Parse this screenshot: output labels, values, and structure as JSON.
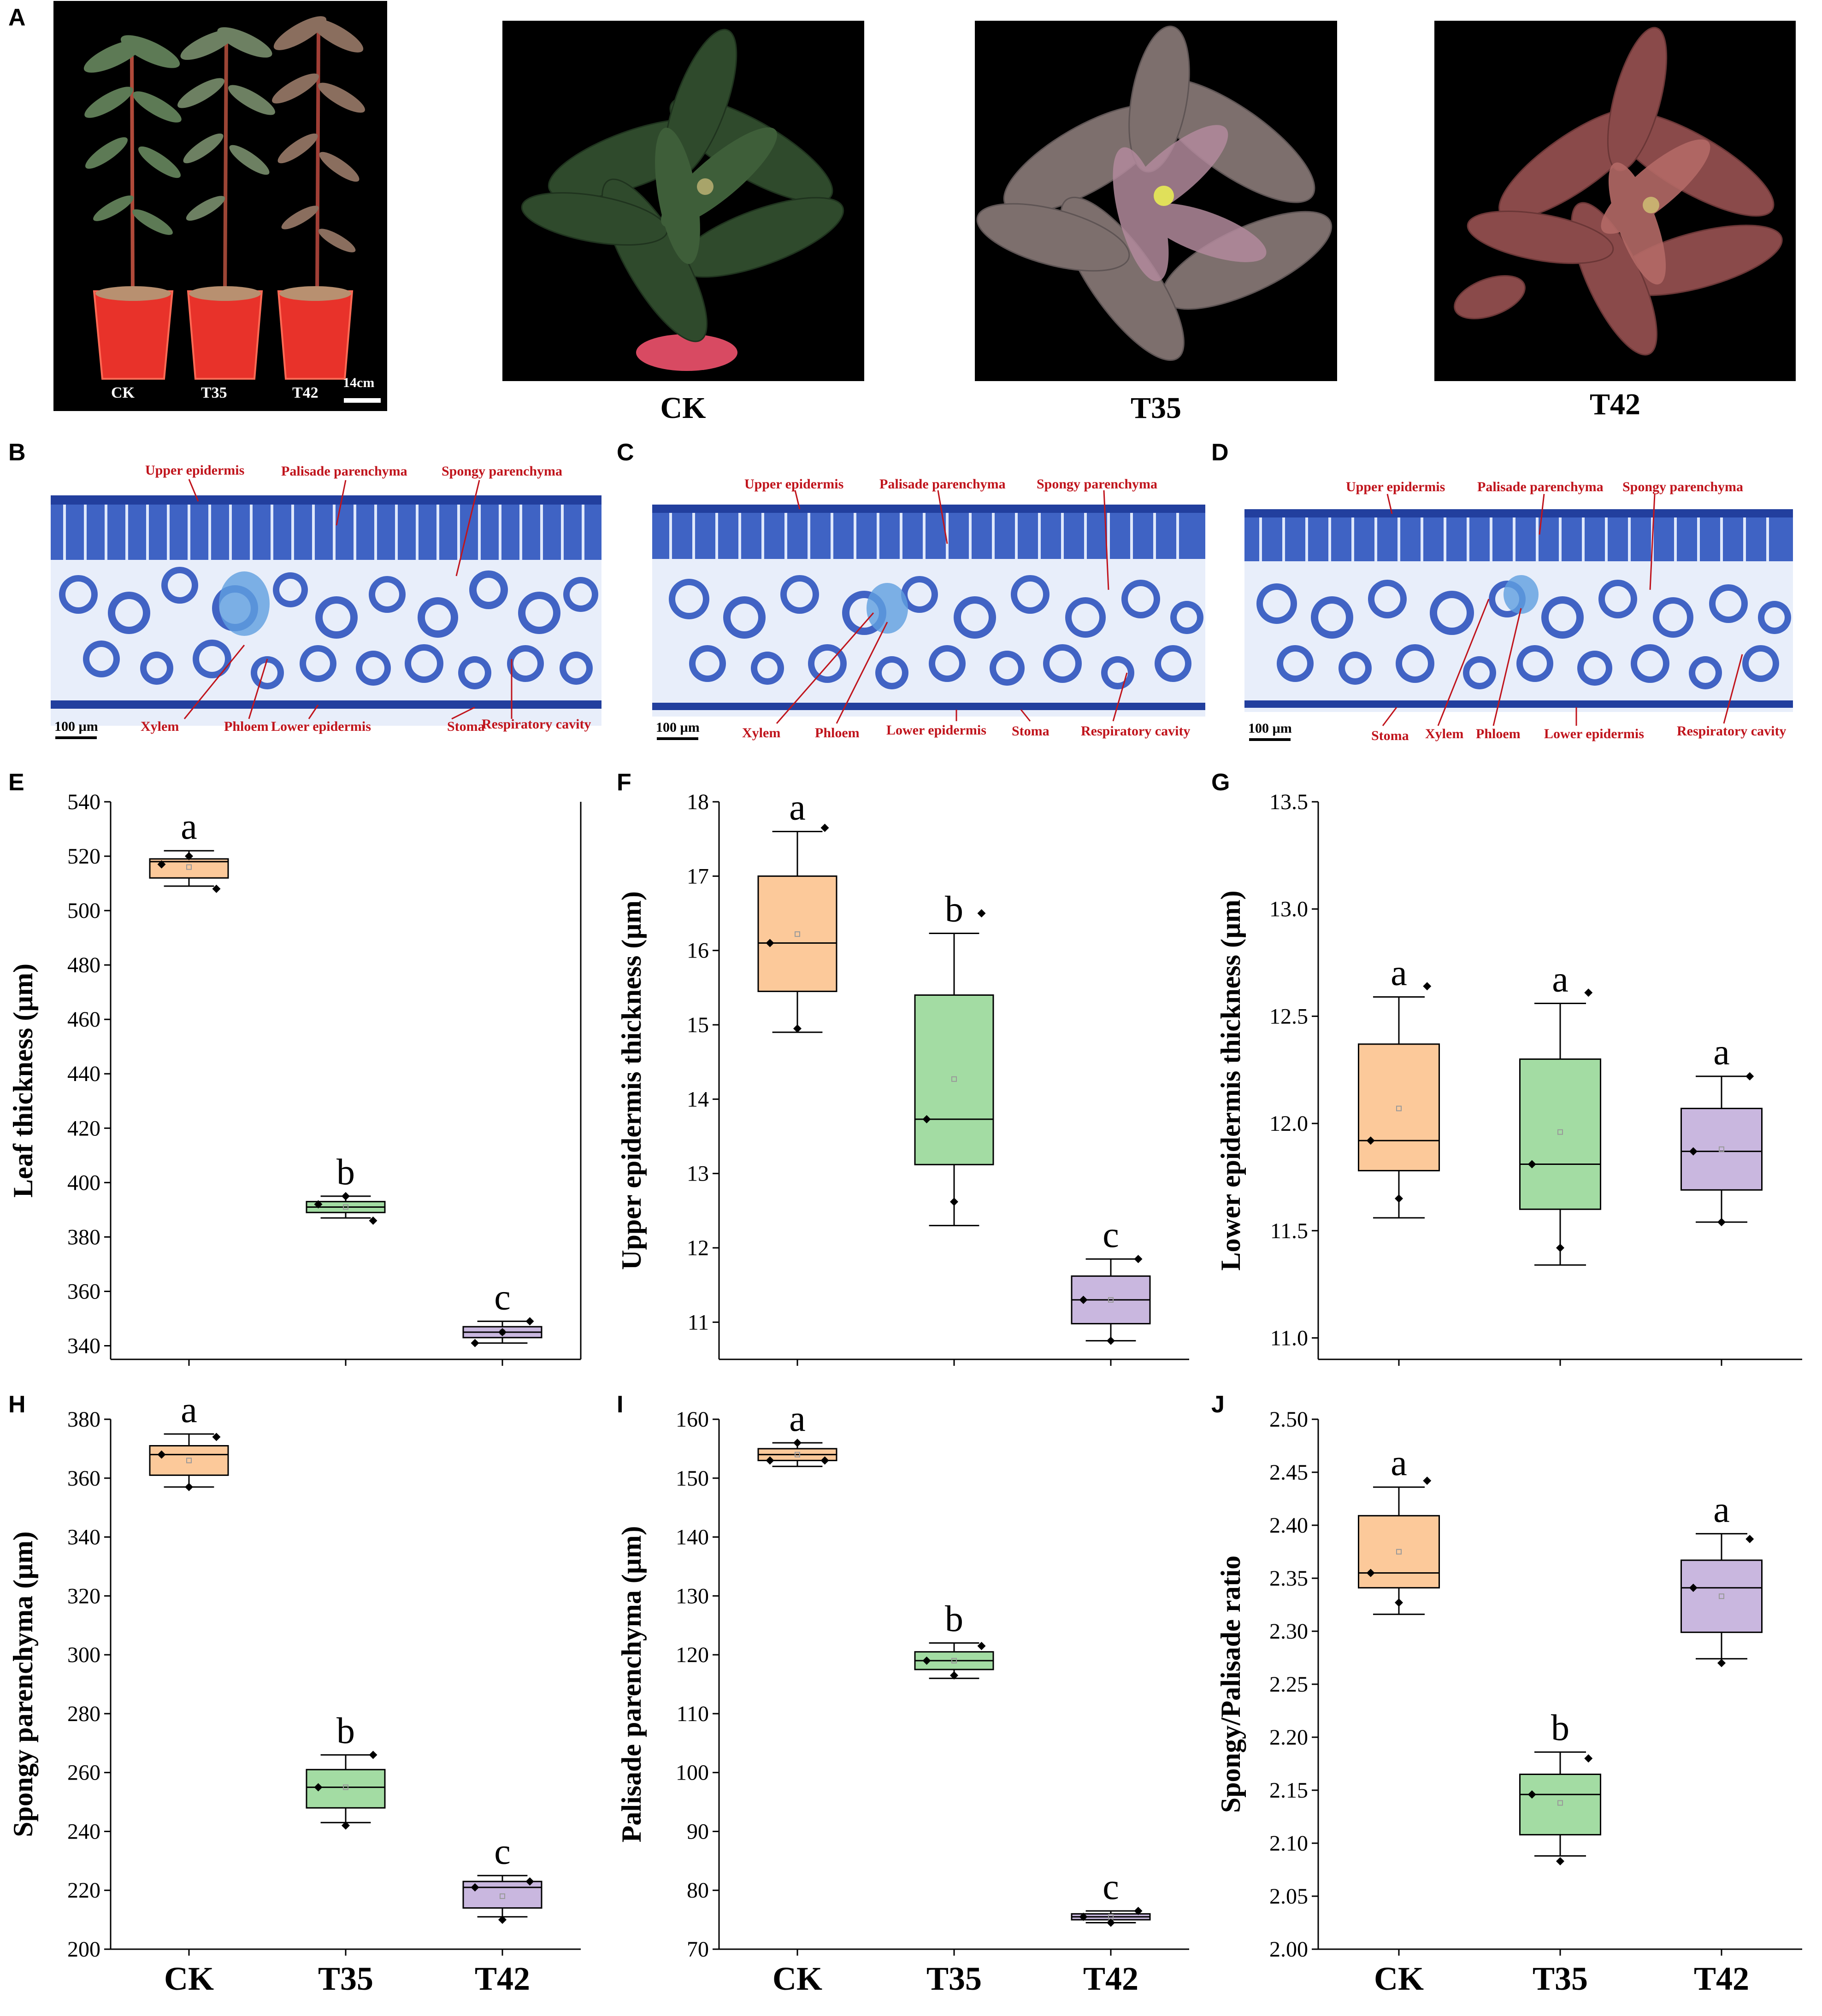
{
  "panel_letters": [
    "A",
    "B",
    "C",
    "D",
    "E",
    "F",
    "G",
    "H",
    "I",
    "J"
  ],
  "panel_a": {
    "pot_labels": [
      "CK",
      "T35",
      "T42"
    ],
    "scale_bar": "14cm",
    "photo_captions": [
      "CK",
      "T35",
      "T42"
    ]
  },
  "histology": [
    {
      "labels": {
        "upper": "Upper epidermis",
        "palisade": "Palisade parenchyma",
        "spongy": "Spongy parenchyma",
        "xylem": "Xylem",
        "phloem": "Phloem",
        "lower": "Lower epidermis",
        "stoma": "Stoma",
        "cavity": "Respiratory cavity"
      },
      "scale": "100 µm"
    },
    {
      "labels": {
        "upper": "Upper epidermis",
        "palisade": "Palisade parenchyma",
        "spongy": "Spongy parenchyma",
        "xylem": "Xylem",
        "phloem": "Phloem",
        "lower": "Lower epidermis",
        "stoma": "Stoma",
        "cavity": "Respiratory cavity"
      },
      "scale": "100 µm"
    },
    {
      "labels": {
        "upper": "Upper epidermis",
        "palisade": "Palisade parenchyma",
        "spongy": "Spongy parenchyma",
        "stoma": "Stoma",
        "xylem": "Xylem",
        "phloem": "Phloem",
        "lower": "Lower epidermis",
        "cavity": "Respiratory cavity"
      },
      "scale": "100 µm"
    }
  ],
  "colors": {
    "CK": "#fcc99a",
    "T35": "#a3dca3",
    "T42": "#c9b7df",
    "histo_stain": "#2a4fb8",
    "label_red": "#c0141c"
  },
  "chart_data": [
    {
      "id": "E",
      "type": "box",
      "ylabel": "Leaf thickness (µm)",
      "ylim": [
        335,
        540
      ],
      "yticks": [
        340,
        360,
        380,
        400,
        420,
        440,
        460,
        480,
        500,
        520,
        540
      ],
      "categories": [
        "CK",
        "T35",
        "T42"
      ],
      "show_xlabels": false,
      "boxes": [
        {
          "min": 509,
          "q1": 512,
          "median": 518,
          "q3": 519,
          "max": 522,
          "mean": 516,
          "points": [
            517,
            520,
            508
          ],
          "letter": "a"
        },
        {
          "min": 387,
          "q1": 389,
          "median": 391,
          "q3": 393,
          "max": 395,
          "mean": 391,
          "points": [
            392,
            395,
            386
          ],
          "letter": "b"
        },
        {
          "min": 341,
          "q1": 343,
          "median": 345,
          "q3": 347,
          "max": 349,
          "mean": 345,
          "points": [
            341,
            345,
            349
          ],
          "letter": "c"
        }
      ]
    },
    {
      "id": "F",
      "type": "box",
      "ylabel": "Upper epidermis thickness (µm)",
      "ylim": [
        10.5,
        18
      ],
      "yticks": [
        11,
        12,
        13,
        14,
        15,
        16,
        17,
        18
      ],
      "categories": [
        "CK",
        "T35",
        "T42"
      ],
      "show_xlabels": false,
      "boxes": [
        {
          "min": 14.9,
          "q1": 15.45,
          "median": 16.1,
          "q3": 17.0,
          "max": 17.6,
          "mean": 16.22,
          "points": [
            16.1,
            14.95,
            17.65
          ],
          "letter": "a"
        },
        {
          "min": 12.3,
          "q1": 13.12,
          "median": 13.73,
          "q3": 15.4,
          "max": 16.23,
          "mean": 14.27,
          "points": [
            13.73,
            12.62,
            16.5
          ],
          "letter": "b"
        },
        {
          "min": 10.75,
          "q1": 10.98,
          "median": 11.3,
          "q3": 11.62,
          "max": 11.85,
          "mean": 11.3,
          "points": [
            11.3,
            10.75,
            11.85
          ],
          "letter": "c"
        }
      ]
    },
    {
      "id": "G",
      "type": "box",
      "ylabel": "Lower epidermis thickness (µm)",
      "ylim": [
        10.9,
        13.5
      ],
      "yticks": [
        11.0,
        11.5,
        12.0,
        12.5,
        13.0,
        13.5
      ],
      "categories": [
        "CK",
        "T35",
        "T42"
      ],
      "show_xlabels": false,
      "boxes": [
        {
          "min": 11.56,
          "q1": 11.78,
          "median": 11.92,
          "q3": 12.37,
          "max": 12.59,
          "mean": 12.07,
          "points": [
            11.92,
            11.65,
            12.64
          ],
          "letter": "a"
        },
        {
          "min": 11.34,
          "q1": 11.6,
          "median": 11.81,
          "q3": 12.3,
          "max": 12.56,
          "mean": 11.96,
          "points": [
            11.81,
            11.42,
            12.61
          ],
          "letter": "a"
        },
        {
          "min": 11.54,
          "q1": 11.69,
          "median": 11.87,
          "q3": 12.07,
          "max": 12.22,
          "mean": 11.88,
          "points": [
            11.87,
            11.54,
            12.22
          ],
          "letter": "a"
        }
      ]
    },
    {
      "id": "H",
      "type": "box",
      "ylabel": "Spongy parenchyma (µm)",
      "ylim": [
        200,
        380
      ],
      "yticks": [
        200,
        220,
        240,
        260,
        280,
        300,
        320,
        340,
        360,
        380
      ],
      "categories": [
        "CK",
        "T35",
        "T42"
      ],
      "show_xlabels": true,
      "boxes": [
        {
          "min": 357,
          "q1": 361,
          "median": 368,
          "q3": 371,
          "max": 375,
          "mean": 366,
          "points": [
            368,
            357,
            374
          ],
          "letter": "a"
        },
        {
          "min": 243,
          "q1": 248,
          "median": 255,
          "q3": 261,
          "max": 266,
          "mean": 255,
          "points": [
            255,
            242,
            266
          ],
          "letter": "b"
        },
        {
          "min": 211,
          "q1": 214,
          "median": 221,
          "q3": 223,
          "max": 225,
          "mean": 218,
          "points": [
            221,
            210,
            223
          ],
          "letter": "c"
        }
      ]
    },
    {
      "id": "I",
      "type": "box",
      "ylabel": "Palisade parenchyma (µm)",
      "ylim": [
        70,
        160
      ],
      "yticks": [
        70,
        80,
        90,
        100,
        110,
        120,
        130,
        140,
        150,
        160
      ],
      "categories": [
        "CK",
        "T35",
        "T42"
      ],
      "show_xlabels": true,
      "boxes": [
        {
          "min": 152,
          "q1": 153,
          "median": 154,
          "q3": 155,
          "max": 156,
          "mean": 154,
          "points": [
            153,
            156,
            153
          ],
          "letter": "a"
        },
        {
          "min": 116,
          "q1": 117.5,
          "median": 119,
          "q3": 120.5,
          "max": 122,
          "mean": 119,
          "points": [
            119,
            116.5,
            121.5
          ],
          "letter": "b"
        },
        {
          "min": 74.5,
          "q1": 75,
          "median": 75.5,
          "q3": 76,
          "max": 76.5,
          "mean": 75.5,
          "points": [
            75.5,
            74.5,
            76.5
          ],
          "letter": "c"
        }
      ]
    },
    {
      "id": "J",
      "type": "box",
      "ylabel": "Spongy/Palisade ratio",
      "ylim": [
        2.0,
        2.5
      ],
      "yticks": [
        2.0,
        2.05,
        2.1,
        2.15,
        2.2,
        2.25,
        2.3,
        2.35,
        2.4,
        2.45,
        2.5
      ],
      "categories": [
        "CK",
        "T35",
        "T42"
      ],
      "show_xlabels": true,
      "boxes": [
        {
          "min": 2.316,
          "q1": 2.341,
          "median": 2.355,
          "q3": 2.409,
          "max": 2.436,
          "mean": 2.375,
          "points": [
            2.355,
            2.327,
            2.442
          ],
          "letter": "a"
        },
        {
          "min": 2.088,
          "q1": 2.108,
          "median": 2.146,
          "q3": 2.165,
          "max": 2.186,
          "mean": 2.138,
          "points": [
            2.146,
            2.083,
            2.18
          ],
          "letter": "b"
        },
        {
          "min": 2.274,
          "q1": 2.299,
          "median": 2.341,
          "q3": 2.367,
          "max": 2.392,
          "mean": 2.333,
          "points": [
            2.341,
            2.27,
            2.387
          ],
          "letter": "a"
        }
      ]
    }
  ]
}
